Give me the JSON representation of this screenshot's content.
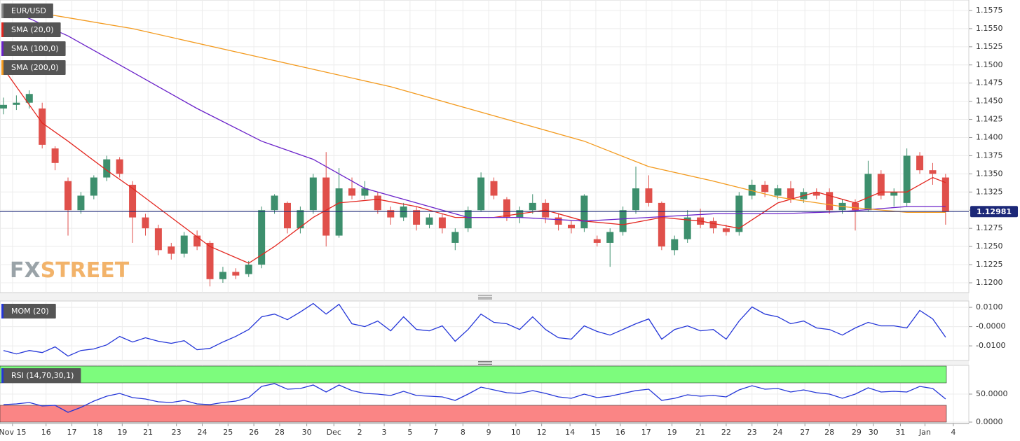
{
  "watermark": [
    "FX",
    "STREET"
  ],
  "chart_data": [
    {
      "type": "candlestick",
      "name": "EUR/USD",
      "up_color": "#3d8f6d",
      "down_color": "#e0504b",
      "open": [
        1.144,
        1.1445,
        1.1448,
        1.144,
        1.1385,
        1.134,
        1.13,
        1.132,
        1.1345,
        1.137,
        1.1335,
        1.129,
        1.1275,
        1.125,
        1.124,
        1.1265,
        1.1255,
        1.1205,
        1.1215,
        1.1212,
        1.1225,
        1.13,
        1.131,
        1.1275,
        1.13,
        1.1345,
        1.1265,
        1.133,
        1.132,
        1.132,
        1.13,
        1.129,
        1.13,
        1.128,
        1.129,
        1.1255,
        1.1275,
        1.13,
        1.134,
        1.1315,
        1.129,
        1.13,
        1.131,
        1.129,
        1.128,
        1.1275,
        1.126,
        1.1255,
        1.127,
        1.13,
        1.133,
        1.131,
        1.1245,
        1.126,
        1.129,
        1.1285,
        1.1275,
        1.127,
        1.132,
        1.1335,
        1.132,
        1.133,
        1.1315,
        1.1325,
        1.1325,
        1.13,
        1.131,
        1.13,
        1.135,
        1.132,
        1.131,
        1.1375,
        1.1355,
        1.1345
      ],
      "high": [
        1.1455,
        1.1458,
        1.1465,
        1.1448,
        1.1388,
        1.1345,
        1.1325,
        1.1348,
        1.1375,
        1.1373,
        1.134,
        1.1295,
        1.128,
        1.1255,
        1.127,
        1.1272,
        1.1258,
        1.1222,
        1.122,
        1.123,
        1.1305,
        1.1322,
        1.1312,
        1.1305,
        1.135,
        1.138,
        1.1358,
        1.1345,
        1.134,
        1.1325,
        1.1305,
        1.131,
        1.1305,
        1.1295,
        1.1295,
        1.1275,
        1.1305,
        1.1352,
        1.1345,
        1.1318,
        1.1305,
        1.1322,
        1.1315,
        1.1295,
        1.1285,
        1.1322,
        1.1265,
        1.1275,
        1.1305,
        1.136,
        1.1348,
        1.1312,
        1.1265,
        1.13,
        1.1302,
        1.129,
        1.128,
        1.1325,
        1.1342,
        1.134,
        1.1335,
        1.134,
        1.133,
        1.133,
        1.133,
        1.1315,
        1.1315,
        1.1368,
        1.1355,
        1.133,
        1.1385,
        1.138,
        1.1365,
        1.135
      ],
      "low": [
        1.1432,
        1.1438,
        1.144,
        1.1385,
        1.1355,
        1.1265,
        1.1295,
        1.1315,
        1.134,
        1.1345,
        1.1255,
        1.1265,
        1.1238,
        1.1232,
        1.1235,
        1.1245,
        1.1195,
        1.12,
        1.1205,
        1.1208,
        1.122,
        1.1295,
        1.1268,
        1.1268,
        1.1295,
        1.125,
        1.1262,
        1.1315,
        1.1315,
        1.1295,
        1.128,
        1.1285,
        1.1272,
        1.1275,
        1.1268,
        1.1245,
        1.127,
        1.1298,
        1.1315,
        1.1285,
        1.1282,
        1.1295,
        1.1282,
        1.1272,
        1.1268,
        1.127,
        1.125,
        1.1222,
        1.1265,
        1.1295,
        1.1305,
        1.1245,
        1.1238,
        1.1255,
        1.1275,
        1.1268,
        1.1265,
        1.1265,
        1.1315,
        1.1318,
        1.1315,
        1.131,
        1.131,
        1.1315,
        1.1295,
        1.1295,
        1.1272,
        1.1298,
        1.1315,
        1.1305,
        1.1305,
        1.135,
        1.1335,
        1.128
      ],
      "close": [
        1.1445,
        1.1448,
        1.146,
        1.139,
        1.1365,
        1.13,
        1.132,
        1.1345,
        1.137,
        1.135,
        1.129,
        1.1275,
        1.1245,
        1.124,
        1.1265,
        1.125,
        1.1205,
        1.1215,
        1.121,
        1.1225,
        1.13,
        1.132,
        1.1275,
        1.13,
        1.1345,
        1.1265,
        1.133,
        1.132,
        1.133,
        1.13,
        1.129,
        1.1305,
        1.128,
        1.129,
        1.1275,
        1.127,
        1.13,
        1.1345,
        1.132,
        1.129,
        1.13,
        1.131,
        1.129,
        1.128,
        1.1275,
        1.132,
        1.1255,
        1.127,
        1.13,
        1.133,
        1.131,
        1.125,
        1.126,
        1.129,
        1.128,
        1.1275,
        1.127,
        1.132,
        1.1335,
        1.1325,
        1.133,
        1.1315,
        1.1325,
        1.132,
        1.13,
        1.131,
        1.13,
        1.135,
        1.132,
        1.1325,
        1.1375,
        1.1355,
        1.135,
        1.12981
      ],
      "series": [
        {
          "name": "SMA (20,0)",
          "color": "#e3261f",
          "x": [
            0,
            3,
            5,
            8,
            10,
            13,
            16,
            19,
            21,
            24,
            26,
            29,
            32,
            35,
            38,
            42,
            45,
            48,
            51,
            54,
            57,
            60,
            63,
            66,
            68,
            70,
            72,
            73
          ],
          "values": [
            1.1495,
            1.142,
            1.1395,
            1.1355,
            1.133,
            1.129,
            1.125,
            1.1227,
            1.125,
            1.129,
            1.131,
            1.1315,
            1.1305,
            1.129,
            1.129,
            1.13,
            1.1285,
            1.128,
            1.129,
            1.1285,
            1.1275,
            1.131,
            1.1325,
            1.131,
            1.1325,
            1.1325,
            1.1345,
            1.1338
          ]
        },
        {
          "name": "SMA (100,0)",
          "color": "#6a22c9",
          "x": [
            0,
            5,
            10,
            15,
            20,
            24,
            28,
            32,
            36,
            40,
            45,
            50,
            55,
            60,
            65,
            70,
            73
          ],
          "values": [
            1.158,
            1.154,
            1.149,
            1.144,
            1.1395,
            1.137,
            1.133,
            1.131,
            1.129,
            1.129,
            1.1285,
            1.129,
            1.1295,
            1.1295,
            1.1298,
            1.1305,
            1.1305
          ]
        },
        {
          "name": "SMA (200,0)",
          "color": "#f39a1e",
          "x": [
            0,
            10,
            20,
            30,
            40,
            45,
            50,
            55,
            60,
            65,
            70,
            73
          ],
          "values": [
            1.158,
            1.155,
            1.151,
            1.147,
            1.142,
            1.1395,
            1.136,
            1.134,
            1.1318,
            1.1305,
            1.1297,
            1.1297
          ]
        }
      ],
      "last_price": 1.12981,
      "last_price_color": "#1c2878",
      "xlim": [
        -0.27,
        74.8
      ],
      "ylim": [
        1.11865,
        1.15894
      ],
      "grid": true,
      "yticks": [
        {
          "value": 1.12,
          "label": "1.1200"
        },
        {
          "value": 1.1225,
          "label": "1.1225"
        },
        {
          "value": 1.125,
          "label": "1.1250"
        },
        {
          "value": 1.1275,
          "label": "1.1275"
        },
        {
          "value": 1.13,
          "label": "1.1300"
        },
        {
          "value": 1.1325,
          "label": "1.1325"
        },
        {
          "value": 1.135,
          "label": "1.1350"
        },
        {
          "value": 1.1375,
          "label": "1.1375"
        },
        {
          "value": 1.14,
          "label": "1.1400"
        },
        {
          "value": 1.1425,
          "label": "1.1425"
        },
        {
          "value": 1.145,
          "label": "1.1450"
        },
        {
          "value": 1.1475,
          "label": "1.1475"
        },
        {
          "value": 1.15,
          "label": "1.1500"
        },
        {
          "value": 1.1525,
          "label": "1.1525"
        },
        {
          "value": 1.155,
          "label": "1.1550"
        },
        {
          "value": 1.1575,
          "label": "1.1575"
        }
      ],
      "xticks": [
        {
          "value": 0.7,
          "label": "Nov 15"
        },
        {
          "value": 3.3,
          "label": "16"
        },
        {
          "value": 5.3,
          "label": "17"
        },
        {
          "value": 7.3,
          "label": "18"
        },
        {
          "value": 9.2,
          "label": "19"
        },
        {
          "value": 11.2,
          "label": "21"
        },
        {
          "value": 13.4,
          "label": "23"
        },
        {
          "value": 15.4,
          "label": "24"
        },
        {
          "value": 17.4,
          "label": "25"
        },
        {
          "value": 19.4,
          "label": "26"
        },
        {
          "value": 21.4,
          "label": "28"
        },
        {
          "value": 23.5,
          "label": "30"
        },
        {
          "value": 25.6,
          "label": "Dec"
        },
        {
          "value": 27.6,
          "label": "2"
        },
        {
          "value": 29.5,
          "label": "3"
        },
        {
          "value": 31.5,
          "label": "5"
        },
        {
          "value": 33.5,
          "label": "7"
        },
        {
          "value": 35.6,
          "label": "8"
        },
        {
          "value": 37.6,
          "label": "9"
        },
        {
          "value": 39.7,
          "label": "10"
        },
        {
          "value": 41.7,
          "label": "12"
        },
        {
          "value": 43.9,
          "label": "14"
        },
        {
          "value": 45.9,
          "label": "15"
        },
        {
          "value": 47.8,
          "label": "16"
        },
        {
          "value": 49.8,
          "label": "17"
        },
        {
          "value": 51.8,
          "label": "19"
        },
        {
          "value": 54.0,
          "label": "21"
        },
        {
          "value": 56.0,
          "label": "22"
        },
        {
          "value": 58.0,
          "label": "23"
        },
        {
          "value": 60.0,
          "label": "24"
        },
        {
          "value": 62.1,
          "label": "27"
        },
        {
          "value": 64.0,
          "label": "28"
        },
        {
          "value": 66.1,
          "label": "29"
        },
        {
          "value": 67.4,
          "label": "30"
        },
        {
          "value": 69.5,
          "label": "31"
        },
        {
          "value": 71.4,
          "label": "Jan"
        },
        {
          "value": 73.6,
          "label": "4"
        }
      ]
    },
    {
      "type": "line",
      "series": [
        {
          "name": "MOM (20)",
          "color": "#2436d8",
          "values": [
            -0.0124,
            -0.0142,
            -0.0124,
            -0.0135,
            -0.0105,
            -0.0153,
            -0.0124,
            -0.0116,
            -0.0095,
            -0.0051,
            -0.008,
            -0.0058,
            -0.0076,
            -0.0087,
            -0.0073,
            -0.012,
            -0.0113,
            -0.008,
            -0.0051,
            -0.0015,
            0.0051,
            0.0065,
            0.0036,
            0.0076,
            0.012,
            0.0065,
            0.0116,
            0.0015,
            0.0,
            0.0029,
            -0.0022,
            0.0051,
            -0.0015,
            -0.0022,
            0.0004,
            -0.0076,
            -0.0015,
            0.0065,
            0.0022,
            0.0015,
            -0.0015,
            0.0051,
            -0.0015,
            -0.0058,
            -0.0065,
            0.0004,
            -0.0025,
            -0.0044,
            -0.0015,
            0.0015,
            0.004,
            -0.0065,
            -0.0015,
            0.0004,
            -0.0022,
            -0.0015,
            -0.0065,
            0.0029,
            0.0102,
            0.0065,
            0.0051,
            0.0015,
            0.0029,
            -0.0007,
            -0.0015,
            -0.0044,
            -0.0007,
            0.0022,
            0.0004,
            0.0004,
            -0.0007,
            0.0084,
            0.004,
            -0.0055
          ]
        }
      ],
      "ylim": [
        -0.0176,
        0.0133
      ],
      "grid": true,
      "yticks": [
        {
          "value": 0.01,
          "label": "0.0100"
        },
        {
          "value": 0,
          "label": "-0.0000"
        },
        {
          "value": -0.01,
          "label": "-0.0100"
        }
      ]
    },
    {
      "type": "line",
      "series": [
        {
          "name": "RSI (14,70,30,1)",
          "color": "#2436d8",
          "values": [
            31.3,
            32.5,
            35,
            28.8,
            30,
            17.5,
            26.3,
            37.5,
            46.3,
            51.3,
            43.8,
            41.3,
            36.3,
            35,
            38.8,
            32.5,
            31.3,
            35,
            37.5,
            43.8,
            63.8,
            68.8,
            58.8,
            60,
            66.3,
            53.8,
            66.3,
            56.3,
            51.3,
            50,
            47.5,
            55,
            47.5,
            46.3,
            45,
            38.8,
            50,
            62.5,
            57.5,
            52.5,
            51.3,
            56.3,
            51.3,
            45,
            42.5,
            50,
            43.8,
            46.3,
            51.3,
            56.3,
            58.8,
            38.8,
            42.5,
            48.8,
            46.3,
            47.5,
            45,
            57.5,
            65,
            58.8,
            60,
            53.8,
            57.5,
            52.5,
            50,
            42.5,
            50,
            61.3,
            53.8,
            55,
            53.8,
            63.8,
            60,
            41.3
          ]
        }
      ],
      "bands": [
        {
          "from": 70,
          "to": 100,
          "color": "#7dfc7d"
        },
        {
          "from": 0,
          "to": 30,
          "color": "#fa8585"
        }
      ],
      "ylim": [
        -2.5,
        101.25
      ],
      "grid": true,
      "yticks": [
        {
          "value": 50,
          "label": "50.0000"
        },
        {
          "value": 0,
          "label": "0.0000"
        }
      ]
    }
  ]
}
